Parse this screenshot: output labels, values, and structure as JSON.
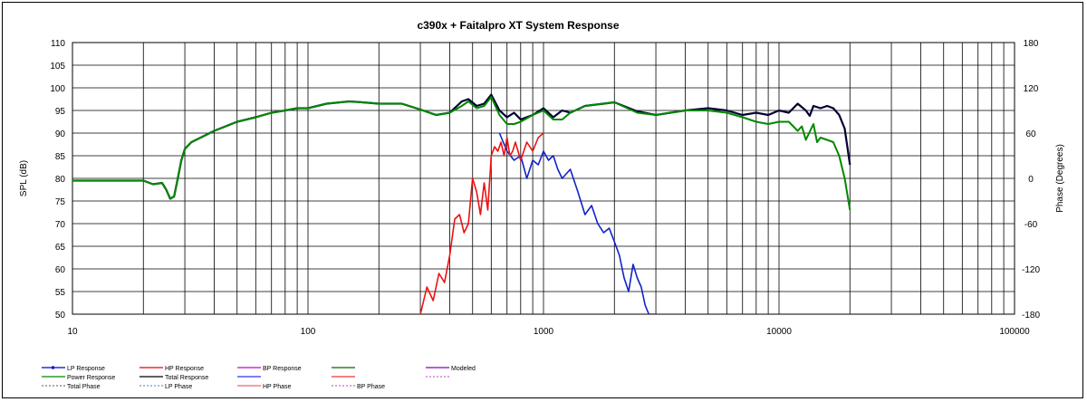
{
  "chart_data": {
    "type": "line",
    "title": "c390x + Faitalpro XT    System Response",
    "ylabel": "SPL (dB)",
    "y2label": "Phase (Degrees)",
    "xscale": "log",
    "xlim": [
      10,
      100000
    ],
    "ylim": [
      50,
      110
    ],
    "y2lim": [
      -180,
      180
    ],
    "x_ticks": [
      "10",
      "100",
      "1000",
      "10000",
      "100000"
    ],
    "y_ticks": [
      "50",
      "55",
      "60",
      "65",
      "70",
      "75",
      "80",
      "85",
      "90",
      "95",
      "100",
      "105",
      "110"
    ],
    "y2_ticks": [
      "-180",
      "-120",
      "-60",
      "0",
      "60",
      "120",
      "180"
    ],
    "grid": true,
    "legend_position": "bottom",
    "legend": [
      {
        "name": "LP Response",
        "color": "#0000cc",
        "style": "solid-marker"
      },
      {
        "name": "HP Response",
        "color": "#ee0000",
        "style": "solid"
      },
      {
        "name": "BP Response",
        "color": "#cc00cc",
        "style": "solid"
      },
      {
        "name": "",
        "color": "#006600",
        "style": "solid"
      },
      {
        "name": "Modeled",
        "color": "#8800aa",
        "style": "solid"
      },
      {
        "name": "Power Response",
        "color": "#008800",
        "style": "solid"
      },
      {
        "name": "Total Response",
        "color": "#000000",
        "style": "solid"
      },
      {
        "name": "",
        "color": "#3333ee",
        "style": "solid"
      },
      {
        "name": "",
        "color": "#ee3333",
        "style": "solid"
      },
      {
        "name": "",
        "color": "#cc66cc",
        "style": "dotted"
      },
      {
        "name": "Total Phase",
        "color": "#777777",
        "style": "dotted"
      },
      {
        "name": "LP Phase",
        "color": "#6699cc",
        "style": "dotted"
      },
      {
        "name": "HP Phase",
        "color": "#ee6666",
        "style": "solid"
      },
      {
        "name": "BP Phase",
        "color": "#cc66cc",
        "style": "dotted"
      }
    ],
    "series": [
      {
        "name": "Total Response",
        "color": "#000033",
        "width": 2.2,
        "x": [
          10,
          20,
          22,
          24,
          25,
          26,
          27,
          28,
          29,
          30,
          32,
          35,
          40,
          50,
          60,
          70,
          80,
          90,
          100,
          120,
          150,
          170,
          200,
          250,
          300,
          350,
          400,
          450,
          480,
          520,
          560,
          600,
          650,
          700,
          750,
          800,
          900,
          1000,
          1100,
          1200,
          1300,
          1500,
          1800,
          2000,
          2500,
          3000,
          4000,
          5000,
          6000,
          7000,
          8000,
          9000,
          10000,
          11000,
          12000,
          13000,
          13500,
          14000,
          15000,
          16000,
          17000,
          18000,
          19000,
          20000
        ],
        "y": [
          79.5,
          79.5,
          78.7,
          79,
          77.5,
          75.5,
          76,
          80,
          84,
          86.5,
          88,
          89,
          90.5,
          92.5,
          93.5,
          94.5,
          95,
          95.5,
          95.5,
          96.5,
          97,
          96.8,
          96.5,
          96.5,
          95.2,
          94,
          94.5,
          97,
          97.5,
          96,
          96.5,
          98.5,
          95,
          93.5,
          94.5,
          93,
          94,
          95.5,
          93.5,
          95,
          94.5,
          96,
          96.5,
          96.8,
          94.8,
          94,
          95,
          95.5,
          95,
          94,
          94.5,
          94,
          95,
          94.5,
          96.5,
          95,
          93.8,
          96,
          95.5,
          96,
          95.5,
          94,
          91,
          83
        ]
      },
      {
        "name": "Power Response",
        "color": "#008800",
        "width": 2.0,
        "x": [
          10,
          20,
          22,
          24,
          25,
          26,
          27,
          28,
          29,
          30,
          32,
          35,
          40,
          50,
          60,
          70,
          80,
          90,
          100,
          120,
          150,
          170,
          200,
          250,
          300,
          350,
          400,
          450,
          480,
          520,
          560,
          600,
          650,
          700,
          750,
          800,
          900,
          1000,
          1100,
          1200,
          1300,
          1500,
          1800,
          2000,
          2500,
          3000,
          4000,
          5000,
          6000,
          7000,
          8000,
          9000,
          10000,
          11000,
          12000,
          12500,
          13000,
          14000,
          14500,
          15000,
          16000,
          17000,
          18000,
          19000,
          20000
        ],
        "y": [
          79.5,
          79.5,
          78.7,
          79,
          77.5,
          75.5,
          76,
          80,
          84,
          86.5,
          88,
          89,
          90.5,
          92.5,
          93.5,
          94.5,
          95,
          95.5,
          95.5,
          96.5,
          97,
          96.8,
          96.5,
          96.5,
          95.2,
          94,
          94.5,
          96,
          97,
          95.5,
          96,
          98,
          94,
          92,
          92,
          92.5,
          94,
          95,
          93,
          93,
          94.5,
          96,
          96.5,
          96.8,
          94.5,
          94,
          95,
          95,
          94.5,
          93.5,
          92.5,
          92,
          92.5,
          92.5,
          90.5,
          91.5,
          88.5,
          92,
          88,
          89,
          88.5,
          88,
          85,
          80,
          73
        ]
      },
      {
        "name": "LP Response",
        "color": "#1122cc",
        "width": 1.6,
        "x": [
          650,
          700,
          750,
          800,
          850,
          900,
          950,
          1000,
          1050,
          1100,
          1150,
          1200,
          1300,
          1400,
          1500,
          1600,
          1700,
          1800,
          1900,
          2000,
          2100,
          2200,
          2300,
          2400,
          2500,
          2600,
          2700,
          2800,
          2900,
          3000
        ],
        "y": [
          90,
          86,
          84,
          85,
          80,
          84,
          83,
          86,
          84,
          85,
          82,
          80,
          82,
          77,
          72,
          74,
          70,
          68,
          69,
          66,
          63,
          58,
          55,
          61,
          58,
          56,
          52,
          50,
          50,
          50
        ]
      },
      {
        "name": "HP Response",
        "color": "#ee1111",
        "width": 1.6,
        "x": [
          300,
          320,
          340,
          360,
          380,
          400,
          420,
          440,
          460,
          480,
          500,
          520,
          540,
          560,
          580,
          600,
          620,
          640,
          660,
          680,
          700,
          720,
          740,
          760,
          780,
          800,
          850,
          900,
          950,
          1000
        ],
        "y": [
          50,
          56,
          53,
          59,
          57,
          63,
          71,
          72,
          68,
          70,
          80,
          77,
          72,
          79,
          73,
          85,
          87,
          86,
          88,
          85,
          89,
          85,
          86,
          88,
          86,
          84,
          88,
          86,
          89,
          90
        ]
      }
    ]
  }
}
